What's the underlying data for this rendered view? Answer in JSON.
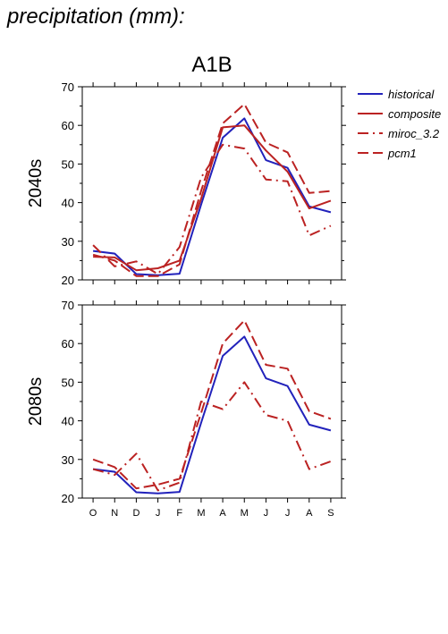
{
  "figure": {
    "title": "precipitation (mm):",
    "scenario": "A1B"
  },
  "legend": [
    {
      "name": "historical",
      "color": "#2222bb",
      "dash": "solid"
    },
    {
      "name": "composite",
      "color": "#bb2222",
      "dash": "solid"
    },
    {
      "name": "miroc_3.2",
      "color": "#bb2222",
      "dash": "dashdot"
    },
    {
      "name": "pcm1",
      "color": "#bb2222",
      "dash": "dashed"
    }
  ],
  "chart_data": [
    {
      "type": "line",
      "row_label": "2040s",
      "categories": [
        "O",
        "N",
        "D",
        "J",
        "F",
        "M",
        "A",
        "M",
        "J",
        "J",
        "A",
        "S"
      ],
      "ylim": [
        20,
        70
      ],
      "yticks": [
        20,
        30,
        40,
        50,
        60,
        70
      ],
      "series": [
        {
          "name": "historical",
          "values": [
            27.5,
            26.8,
            21.5,
            21.2,
            21.6,
            39.5,
            56.8,
            61.8,
            51.0,
            49.0,
            39.0,
            37.5
          ]
        },
        {
          "name": "composite",
          "values": [
            26.0,
            25.8,
            22.5,
            23.0,
            25.0,
            41.0,
            59.5,
            60.0,
            53.5,
            48.0,
            38.5,
            40.5
          ]
        },
        {
          "name": "miroc_3.2",
          "values": [
            29.0,
            23.5,
            24.8,
            21.5,
            28.5,
            46.5,
            55.0,
            54.0,
            46.0,
            45.5,
            31.5,
            34.0
          ]
        },
        {
          "name": "pcm1",
          "values": [
            26.5,
            25.0,
            21.0,
            21.0,
            24.0,
            43.0,
            60.5,
            65.5,
            55.5,
            53.0,
            42.5,
            43.0
          ]
        }
      ]
    },
    {
      "type": "line",
      "row_label": "2080s",
      "categories": [
        "O",
        "N",
        "D",
        "J",
        "F",
        "M",
        "A",
        "M",
        "J",
        "J",
        "A",
        "S"
      ],
      "ylim": [
        20,
        70
      ],
      "yticks": [
        20,
        30,
        40,
        50,
        60,
        70
      ],
      "series": [
        {
          "name": "historical",
          "values": [
            27.5,
            26.8,
            21.5,
            21.2,
            21.6,
            39.5,
            56.8,
            61.8,
            51.0,
            49.0,
            39.0,
            37.5
          ]
        },
        {
          "name": "miroc_3.2",
          "values": [
            27.5,
            26.0,
            31.5,
            22.0,
            24.0,
            45.0,
            43.0,
            50.0,
            41.5,
            40.0,
            27.5,
            29.5
          ]
        },
        {
          "name": "pcm1",
          "values": [
            30.0,
            28.0,
            22.5,
            23.5,
            25.0,
            42.0,
            60.0,
            66.0,
            54.5,
            53.5,
            42.5,
            40.5
          ]
        }
      ]
    }
  ]
}
